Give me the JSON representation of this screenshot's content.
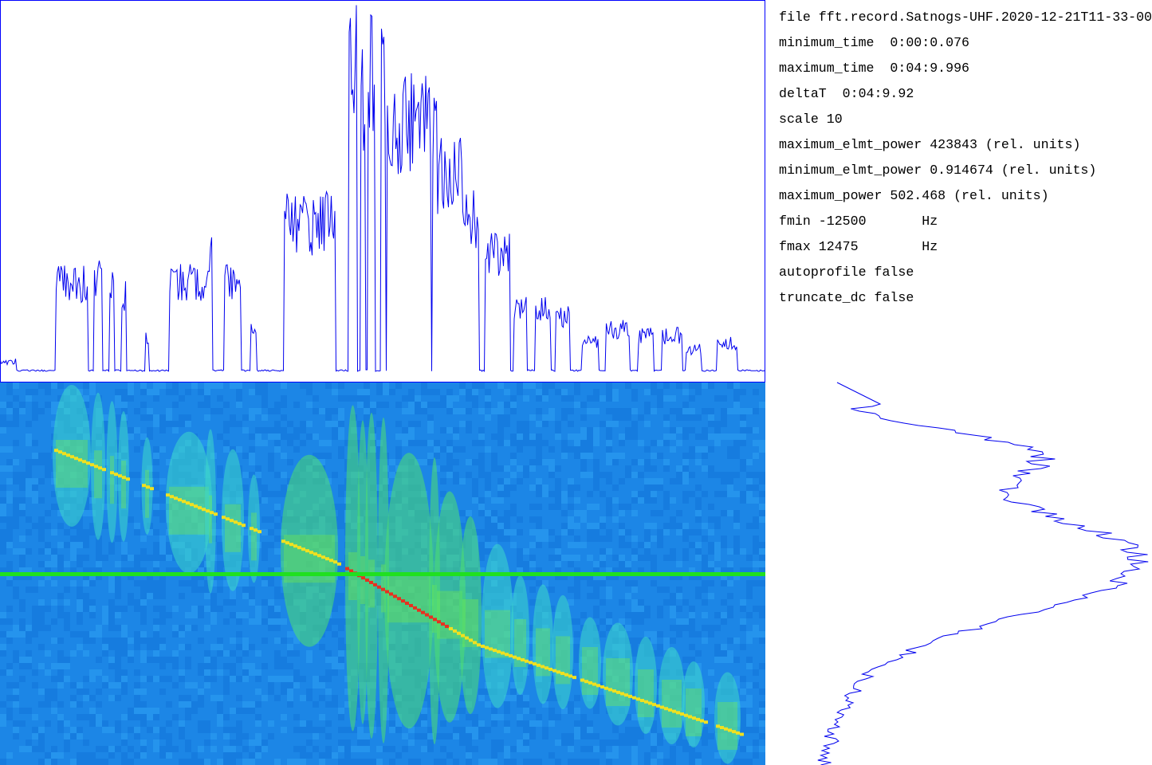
{
  "info_panel": {
    "lines": [
      "file fft.record.Satnogs-UHF.2020-12-21T11-33-00",
      "minimum_time  0:00:0.076",
      "maximum_time  0:04:9.996",
      "deltaT  0:04:9.92",
      "scale 10",
      "maximum_elmt_power 423843 (rel. units)",
      "minimum_elmt_power 0.914674 (rel. units)",
      "maximum_power 502.468 (rel. units)",
      "fmin -12500       Hz",
      "fmax 12475        Hz",
      "autoprofile false",
      "truncate_dc false"
    ]
  }
}
